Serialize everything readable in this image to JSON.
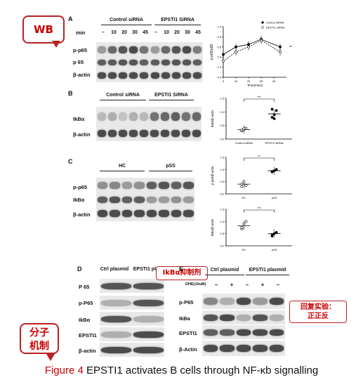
{
  "callouts": {
    "wb": "WB",
    "inhibitor": "IkBα抑制剂",
    "rescue_line1": "回复实验：",
    "rescue_line2": "正正反",
    "mol_line1": "分子",
    "mol_line2": "机制"
  },
  "panel_labels": {
    "a": "A",
    "b": "B",
    "c": "C",
    "d": "D",
    "e": "E"
  },
  "panelA": {
    "group1": "Control siRNA",
    "group2": "EPSTI1 SiRNA",
    "min_label": "min",
    "lanes": [
      "–",
      "10",
      "20",
      "30",
      "45",
      "–",
      "10",
      "20",
      "30",
      "45"
    ],
    "rows": [
      "p-p65",
      "p 65",
      "β-actin"
    ]
  },
  "panelB": {
    "group1": "Control siRNA",
    "group2": "EPSTI1 SiRNA",
    "rows": [
      "IkBα",
      "β-actin"
    ]
  },
  "panelC": {
    "group1": "HC",
    "group2": "pSS",
    "rows": [
      "p-p65",
      "IkBα",
      "β-actin"
    ]
  },
  "panelD": {
    "group1": "Ctrl plasmid",
    "group2": "EPSTI1 plasmid",
    "rows": [
      "P 65",
      "p-P65",
      "IkBα",
      "EPSTI1",
      "β-actin"
    ]
  },
  "panelE": {
    "group1": "Ctrl plasmid",
    "group2": "EPSTI1 plasmid",
    "dhe_label": "DHE(10uM)",
    "dhe_signs": [
      "–",
      "+",
      "–",
      "+",
      "–"
    ],
    "rows": [
      "p-P65",
      "IkBa",
      "EPSTI1",
      "β-Actin"
    ]
  },
  "caption": {
    "prefix": "Figure 4",
    "text": " EPSTI1 activates B cells through NF-κb signalling"
  },
  "chart_data": [
    {
      "type": "line",
      "ylabel": "p-p65/p65",
      "xlabel": "Time(mins)",
      "x": [
        0,
        10,
        20,
        30,
        45
      ],
      "xlim": [
        0,
        50
      ],
      "ylim": [
        0.0,
        1.0
      ],
      "xticks": [
        0,
        10,
        20,
        30,
        40
      ],
      "yticks": [
        0.0,
        0.2,
        0.4,
        0.6,
        0.8,
        1.0
      ],
      "series": [
        {
          "name": "Control siRNA",
          "values": [
            0.45,
            0.6,
            0.65,
            0.75,
            0.6
          ]
        },
        {
          "name": "EPSTI1 siRNA",
          "values": [
            0.32,
            0.5,
            0.6,
            0.73,
            0.5
          ]
        }
      ],
      "legend": "top-right",
      "annotation": "**"
    },
    {
      "type": "scatter",
      "ylabel": "IkBα/β-actin",
      "categories": [
        "Control siRNA",
        "EPSTI1 siRNA"
      ],
      "ylim": [
        0.0,
        1.5
      ],
      "yticks": [
        0.0,
        0.5,
        1.0,
        1.5
      ],
      "points": [
        [
          0.3,
          0.35,
          0.4,
          0.33,
          0.38
        ],
        [
          0.8,
          0.9,
          1.05,
          1.1,
          0.75
        ]
      ],
      "means": [
        0.35,
        0.93
      ],
      "annotation": "***"
    },
    {
      "type": "scatter",
      "ylabel": "p-p65/β-actin",
      "categories": [
        "HC",
        "pSS"
      ],
      "ylim": [
        0.0,
        1.5
      ],
      "yticks": [
        0.0,
        0.5,
        1.0,
        1.5
      ],
      "points": [
        [
          0.3,
          0.5,
          0.35,
          0.4
        ],
        [
          0.9,
          0.95,
          1.0,
          0.92
        ]
      ],
      "means": [
        0.4,
        0.95
      ],
      "annotation": "**"
    },
    {
      "type": "scatter",
      "ylabel": "IkBα/β-actin",
      "categories": [
        "HC",
        "pSS"
      ],
      "ylim": [
        0.0,
        1.5
      ],
      "yticks": [
        0.0,
        0.5,
        1.0,
        1.5
      ],
      "points": [
        [
          0.7,
          0.9,
          1.0,
          0.75
        ],
        [
          0.4,
          0.5,
          0.55,
          0.45
        ]
      ],
      "means": [
        0.83,
        0.5
      ],
      "annotation": "***"
    }
  ]
}
